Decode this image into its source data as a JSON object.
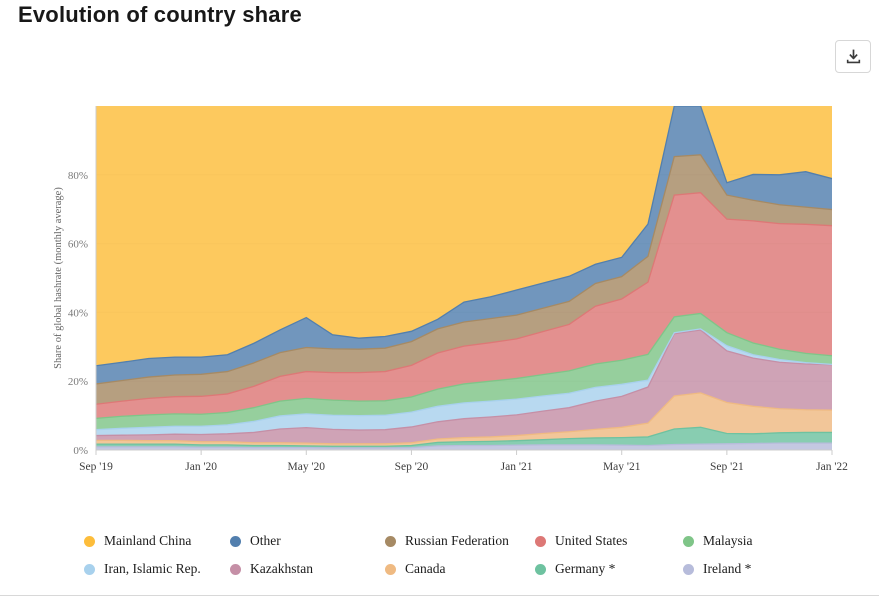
{
  "header": {
    "title": "Evolution of country share"
  },
  "toolbar": {
    "icons": {
      "download": "download-icon"
    }
  },
  "chart_data": {
    "type": "area",
    "stacked": true,
    "percent": true,
    "title": "Evolution of country share",
    "ylabel": "Share of global hashrate (monthly average)",
    "xlabel": "",
    "ylim": [
      0,
      100
    ],
    "yticks": [
      0,
      20,
      40,
      60,
      80
    ],
    "ytick_suffix": "%",
    "grid": "horizontal-faint",
    "legend_position": "bottom",
    "stack_order_note": "series listed top-to-bottom of stack; Ireland * is the bottom band, Mainland China fills to 100% on top",
    "x": [
      "Sep '19",
      "Oct '19",
      "Nov '19",
      "Dec '19",
      "Jan '20",
      "Feb '20",
      "Mar '20",
      "Apr '20",
      "May '20",
      "Jun '20",
      "Jul '20",
      "Aug '20",
      "Sep '20",
      "Oct '20",
      "Nov '20",
      "Dec '20",
      "Jan '21",
      "Feb '21",
      "Mar '21",
      "Apr '21",
      "May '21",
      "Jun '21",
      "Jul '21",
      "Aug '21",
      "Sep '21",
      "Oct '21",
      "Nov '21",
      "Dec '21",
      "Jan '22"
    ],
    "xticks_shown": [
      "Sep '19",
      "Jan '20",
      "May '20",
      "Sep '20",
      "Jan '21",
      "May '21",
      "Sep '21",
      "Jan '22"
    ],
    "series": [
      {
        "name": "Mainland China",
        "color": "#fdbd3b",
        "values": [
          75.5,
          74.5,
          73.4,
          73.0,
          73.0,
          72.3,
          69.0,
          65.1,
          61.5,
          66.5,
          67.5,
          67.0,
          65.5,
          62.0,
          57.0,
          55.5,
          53.5,
          51.5,
          49.5,
          46.0,
          44.0,
          34.3,
          0.0,
          0.0,
          22.3,
          19.9,
          20.0,
          19.1,
          21.1
        ]
      },
      {
        "name": "Other",
        "color": "#527fae",
        "values": [
          5.3,
          5.3,
          5.4,
          5.2,
          5.0,
          4.9,
          5.7,
          6.6,
          8.7,
          4.1,
          3.2,
          3.4,
          3.0,
          2.8,
          5.8,
          6.3,
          7.3,
          7.3,
          7.3,
          5.6,
          5.6,
          9.4,
          14.7,
          14.2,
          3.6,
          7.5,
          8.7,
          10.3,
          9.0
        ]
      },
      {
        "name": "Russian Federation",
        "color": "#a68a64",
        "values": [
          5.9,
          6.0,
          6.2,
          6.3,
          6.4,
          6.5,
          6.8,
          6.9,
          7.0,
          6.9,
          6.8,
          6.8,
          6.9,
          7.0,
          7.0,
          7.0,
          6.9,
          6.8,
          6.7,
          6.6,
          6.5,
          7.5,
          11.2,
          11.0,
          7.0,
          6.0,
          5.5,
          5.0,
          4.7
        ]
      },
      {
        "name": "United States",
        "color": "#dd7876",
        "values": [
          4.1,
          4.4,
          4.8,
          5.0,
          5.2,
          5.4,
          6.2,
          7.2,
          7.8,
          8.0,
          8.3,
          8.5,
          9.2,
          10.5,
          11.0,
          11.2,
          11.5,
          12.5,
          13.5,
          16.8,
          17.8,
          21.0,
          35.4,
          35.1,
          33.0,
          35.5,
          36.5,
          37.5,
          37.8
        ]
      },
      {
        "name": "Malaysia",
        "color": "#7fc588",
        "values": [
          3.3,
          3.5,
          3.6,
          3.6,
          3.5,
          3.6,
          4.0,
          4.3,
          4.5,
          4.4,
          4.2,
          4.2,
          4.4,
          5.0,
          5.5,
          5.8,
          6.0,
          6.2,
          6.5,
          6.8,
          7.0,
          7.5,
          4.6,
          4.5,
          3.8,
          3.4,
          3.0,
          2.7,
          2.5
        ]
      },
      {
        "name": "Iran, Islamic Rep.",
        "color": "#a8d1ed",
        "values": [
          1.7,
          2.0,
          2.2,
          2.3,
          2.4,
          2.6,
          3.2,
          3.8,
          4.0,
          4.1,
          4.2,
          4.2,
          4.3,
          4.5,
          4.6,
          4.6,
          4.6,
          4.4,
          4.2,
          4.0,
          3.5,
          2.0,
          0.3,
          0.3,
          1.5,
          1.0,
          0.8,
          0.4,
          0.1
        ]
      },
      {
        "name": "Kazakhstan",
        "color": "#c58fa6",
        "values": [
          1.4,
          1.5,
          1.7,
          1.9,
          2.1,
          2.3,
          3.0,
          4.0,
          4.5,
          4.2,
          4.0,
          4.1,
          4.6,
          5.0,
          5.5,
          5.8,
          6.0,
          6.5,
          7.0,
          8.2,
          9.0,
          10.5,
          18.1,
          18.3,
          15.0,
          14.0,
          13.5,
          13.3,
          13.2
        ]
      },
      {
        "name": "Canada",
        "color": "#efba82",
        "values": [
          1.1,
          1.1,
          1.0,
          1.0,
          0.9,
          0.9,
          0.8,
          0.8,
          0.8,
          0.7,
          0.7,
          0.7,
          0.8,
          1.0,
          1.2,
          1.3,
          1.5,
          1.8,
          2.0,
          2.5,
          3.0,
          4.0,
          9.6,
          10.0,
          9.0,
          8.0,
          7.0,
          6.6,
          6.5
        ]
      },
      {
        "name": "Germany *",
        "color": "#6ec2a0",
        "values": [
          0.8,
          0.8,
          0.8,
          0.8,
          0.7,
          0.7,
          0.6,
          0.6,
          0.5,
          0.5,
          0.5,
          0.5,
          0.6,
          1.0,
          1.1,
          1.2,
          1.3,
          1.5,
          1.8,
          2.0,
          2.2,
          2.5,
          4.5,
          4.9,
          3.0,
          2.8,
          3.0,
          3.1,
          3.1
        ]
      },
      {
        "name": "Ireland *",
        "color": "#b7bcdb",
        "values": [
          0.9,
          0.9,
          0.9,
          0.9,
          0.8,
          0.8,
          0.7,
          0.7,
          0.7,
          0.6,
          0.6,
          0.6,
          0.7,
          1.2,
          1.3,
          1.3,
          1.4,
          1.5,
          1.5,
          1.5,
          1.4,
          1.3,
          1.6,
          1.7,
          1.8,
          1.9,
          2.0,
          2.0,
          2.0
        ]
      }
    ]
  }
}
